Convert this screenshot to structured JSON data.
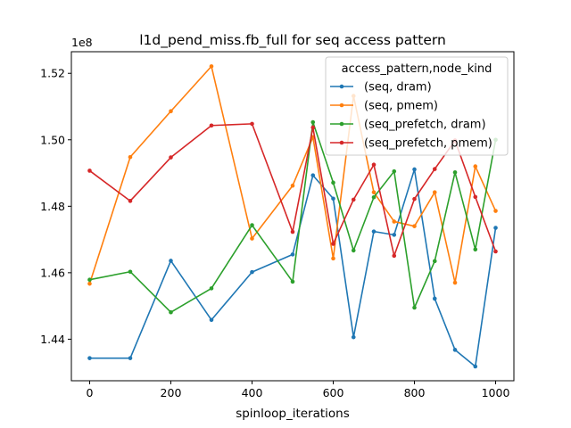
{
  "chart_data": {
    "type": "line",
    "title": "l1d_pend_miss.fb_full for seq access pattern",
    "xlabel": "spinloop_iterations",
    "ylabel": "",
    "y_offset_label": "1e8",
    "y_scale": 100000000,
    "xlim": [
      -45,
      1045
    ],
    "ylim": [
      1.4275,
      1.5265
    ],
    "x_ticks": [
      0,
      200,
      400,
      600,
      800,
      1000
    ],
    "y_ticks": [
      1.44,
      1.46,
      1.48,
      1.5,
      1.52
    ],
    "x_tick_labels": [
      "0",
      "200",
      "400",
      "600",
      "800",
      "1000"
    ],
    "y_tick_labels": [
      "1.44",
      "1.46",
      "1.48",
      "1.50",
      "1.52"
    ],
    "grid": false,
    "legend": {
      "title": "access_pattern,node_kind",
      "placement": "top-right"
    },
    "x": [
      0,
      100,
      200,
      300,
      400,
      500,
      550,
      600,
      650,
      700,
      750,
      800,
      850,
      900,
      950,
      1000
    ],
    "series": [
      {
        "name": "(seq, dram)",
        "color": "#1f77b4",
        "values": [
          1.4343,
          1.4343,
          1.4636,
          1.4458,
          1.4602,
          1.4655,
          1.4893,
          1.4823,
          1.4406,
          1.4724,
          1.4714,
          1.4911,
          1.4522,
          1.4368,
          1.4318,
          1.4735
        ]
      },
      {
        "name": "(seq, pmem)",
        "color": "#ff7f0e",
        "values": [
          1.4567,
          1.4948,
          1.5086,
          1.5221,
          1.4703,
          1.4862,
          1.5008,
          1.4643,
          1.5132,
          1.4842,
          1.4754,
          1.474,
          1.4842,
          1.457,
          1.492,
          1.4786
        ]
      },
      {
        "name": "(seq_prefetch, dram)",
        "color": "#2ca02c",
        "values": [
          1.4579,
          1.4603,
          1.4481,
          1.4553,
          1.4743,
          1.4573,
          1.5053,
          1.4871,
          1.4667,
          1.4827,
          1.4905,
          1.4495,
          1.4635,
          1.4902,
          1.467,
          1.5
        ]
      },
      {
        "name": "(seq_prefetch, pmem)",
        "color": "#d62728",
        "values": [
          1.4907,
          1.4816,
          1.4947,
          1.5043,
          1.5048,
          1.4723,
          1.5037,
          1.4687,
          1.482,
          1.4925,
          1.4651,
          1.4822,
          1.4912,
          1.4998,
          1.4828,
          1.4664
        ]
      }
    ]
  }
}
